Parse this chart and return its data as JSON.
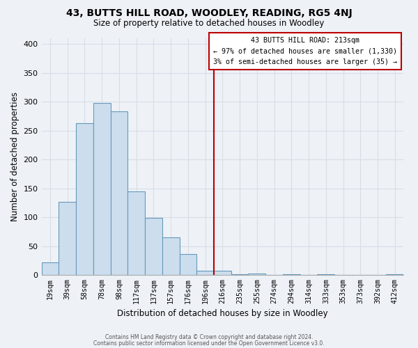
{
  "title": "43, BUTTS HILL ROAD, WOODLEY, READING, RG5 4NJ",
  "subtitle": "Size of property relative to detached houses in Woodley",
  "xlabel": "Distribution of detached houses by size in Woodley",
  "ylabel": "Number of detached properties",
  "bar_color": "#ccdded",
  "bar_edge_color": "#6699bb",
  "categories": [
    "19sqm",
    "39sqm",
    "58sqm",
    "78sqm",
    "98sqm",
    "117sqm",
    "137sqm",
    "157sqm",
    "176sqm",
    "196sqm",
    "216sqm",
    "235sqm",
    "255sqm",
    "274sqm",
    "294sqm",
    "314sqm",
    "333sqm",
    "353sqm",
    "373sqm",
    "392sqm",
    "412sqm"
  ],
  "values": [
    22,
    127,
    263,
    298,
    283,
    145,
    99,
    65,
    37,
    8,
    8,
    2,
    3,
    0,
    2,
    0,
    1,
    0,
    0,
    0,
    1
  ],
  "ylim": [
    0,
    410
  ],
  "yticks": [
    0,
    50,
    100,
    150,
    200,
    250,
    300,
    350,
    400
  ],
  "vline_x": 10.0,
  "vline_color": "#bb0000",
  "annotation_title": "43 BUTTS HILL ROAD: 213sqm",
  "annotation_line1": "← 97% of detached houses are smaller (1,330)",
  "annotation_line2": "3% of semi-detached houses are larger (35) →",
  "annotation_box_color": "#ffffff",
  "annotation_box_edge": "#bb0000",
  "footer1": "Contains HM Land Registry data © Crown copyright and database right 2024.",
  "footer2": "Contains public sector information licensed under the Open Government Licence v3.0.",
  "background_color": "#eef2f7",
  "grid_color": "#d8dde6"
}
